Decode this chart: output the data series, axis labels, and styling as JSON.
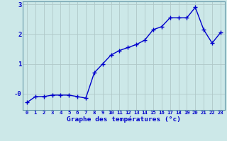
{
  "x": [
    0,
    1,
    2,
    3,
    4,
    5,
    6,
    7,
    8,
    9,
    10,
    11,
    12,
    13,
    14,
    15,
    16,
    17,
    18,
    19,
    20,
    21,
    22,
    23
  ],
  "y": [
    -0.3,
    -0.1,
    -0.1,
    -0.05,
    -0.05,
    -0.05,
    -0.1,
    -0.15,
    0.7,
    1.0,
    1.3,
    1.45,
    1.55,
    1.65,
    1.8,
    2.15,
    2.25,
    2.55,
    2.55,
    2.55,
    2.9,
    2.15,
    1.7,
    2.05
  ],
  "line_color": "#0000cc",
  "bg_color": "#cce8e8",
  "grid_color": "#b0c8c8",
  "xlabel": "Graphe des températures (°c)",
  "xlabel_color": "#0000cc",
  "tick_color": "#0000cc",
  "ylim": [
    -0.55,
    3.1
  ],
  "marker": "+",
  "marker_size": 4,
  "line_width": 1.0,
  "fig_bg": "#cce8e8",
  "spine_color": "#6699aa",
  "xtick_fontsize": 5.2,
  "ytick_fontsize": 6.5,
  "xlabel_fontsize": 6.8
}
